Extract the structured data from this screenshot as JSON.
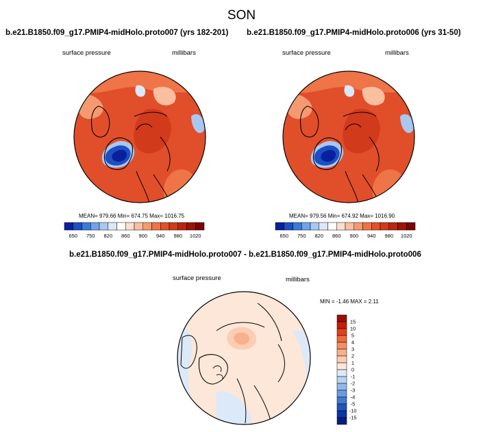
{
  "figure": {
    "title": "SON"
  },
  "chart_data": [
    {
      "type": "heatmap",
      "projection": "north-polar-stereographic",
      "title": "b.e21.B1850.f09_g17.PMIP4-midHolo.proto007 (yrs 182-201)",
      "left_label": "surface pressure",
      "right_label": "millibars",
      "stats": "MEAN= 979.66  Min= 674.75  Max= 1016.75",
      "colorbar": {
        "orientation": "horizontal",
        "tick_labels": [
          "650",
          "750",
          "820",
          "860",
          "900",
          "940",
          "980",
          "1020"
        ],
        "colors": [
          "#08209c",
          "#1c4fc4",
          "#3a7ad8",
          "#6fa4e8",
          "#a8c8f2",
          "#dbe8f8",
          "#ffffff",
          "#fce0cf",
          "#f9bfa0",
          "#f59a70",
          "#ef7447",
          "#e4502b",
          "#d23a1c",
          "#b8260f",
          "#9a1408",
          "#7a0500"
        ]
      }
    },
    {
      "type": "heatmap",
      "projection": "north-polar-stereographic",
      "title": "b.e21.B1850.f09_g17.PMIP4-midHolo.proto006 (yrs 31-50)",
      "left_label": "surface pressure",
      "right_label": "millibars",
      "stats": "MEAN= 979.56  Min= 674.92  Max= 1016.90",
      "colorbar": {
        "orientation": "horizontal",
        "tick_labels": [
          "650",
          "750",
          "820",
          "860",
          "900",
          "940",
          "980",
          "1020"
        ],
        "colors": [
          "#08209c",
          "#1c4fc4",
          "#3a7ad8",
          "#6fa4e8",
          "#a8c8f2",
          "#dbe8f8",
          "#ffffff",
          "#fce0cf",
          "#f9bfa0",
          "#f59a70",
          "#ef7447",
          "#e4502b",
          "#d23a1c",
          "#b8260f",
          "#9a1408",
          "#7a0500"
        ]
      }
    },
    {
      "type": "heatmap",
      "projection": "north-polar-stereographic",
      "title": "b.e21.B1850.f09_g17.PMIP4-midHolo.proto007 - b.e21.B1850.f09_g17.PMIP4-midHolo.proto006",
      "left_label": "surface pressure",
      "right_label": "millibars",
      "stats": "MIN =  -1.46 MAX =   2.11",
      "colorbar": {
        "orientation": "vertical",
        "tick_labels": [
          "15",
          "10",
          "5",
          "4",
          "3",
          "2",
          "1",
          "0",
          "-1",
          "-2",
          "-3",
          "-4",
          "-5",
          "-10",
          "-15"
        ],
        "colors": [
          "#9a0d0d",
          "#c41e0e",
          "#e2401c",
          "#f06a3d",
          "#f58f63",
          "#f9b08c",
          "#fbcdb2",
          "#fde7d8",
          "#dbe9f9",
          "#b8d3f2",
          "#92b8ea",
          "#6b9be0",
          "#4479d2",
          "#2255bb",
          "#0b35a3",
          "#061d80"
        ]
      }
    }
  ]
}
